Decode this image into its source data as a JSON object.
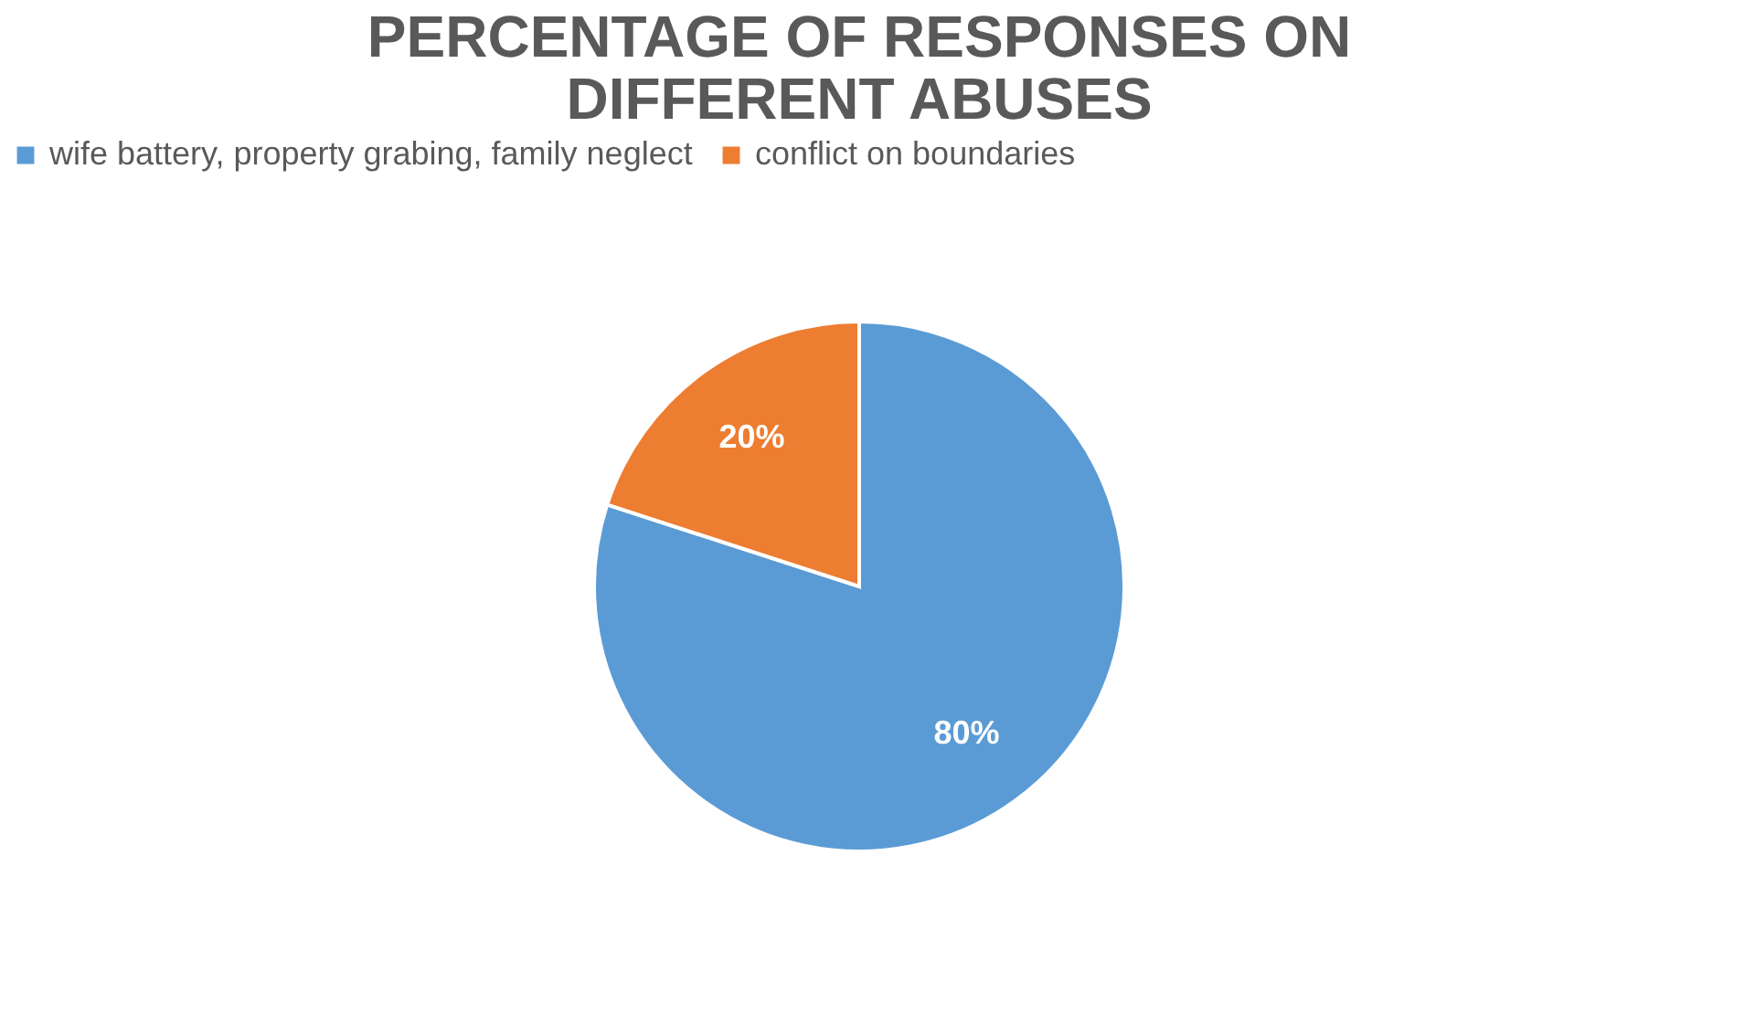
{
  "chart_data": {
    "type": "pie",
    "title": [
      "PERCENTAGE OF RESPONSES ON",
      "DIFFERENT ABUSES"
    ],
    "categories": [
      "wife battery, property grabing, family neglect",
      "conflict on boundaries"
    ],
    "values": [
      80,
      20
    ],
    "colors": [
      "#5b9bd5",
      "#ed7d31"
    ],
    "value_labels": [
      "80%",
      "20%"
    ],
    "legend": "top"
  }
}
